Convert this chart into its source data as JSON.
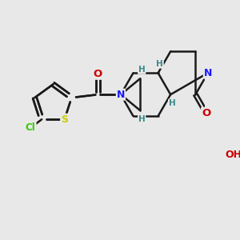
{
  "bg_color": "#e8e8e8",
  "atom_colors": {
    "N": "#1a1aff",
    "O": "#cc0000",
    "S": "#cccc00",
    "Cl": "#33cc00",
    "H": "#3a8a8a"
  },
  "bond_color": "#1a1a1a",
  "lw": 1.8,
  "fs": 9.0,
  "figsize": [
    3.0,
    3.0
  ],
  "dpi": 100
}
